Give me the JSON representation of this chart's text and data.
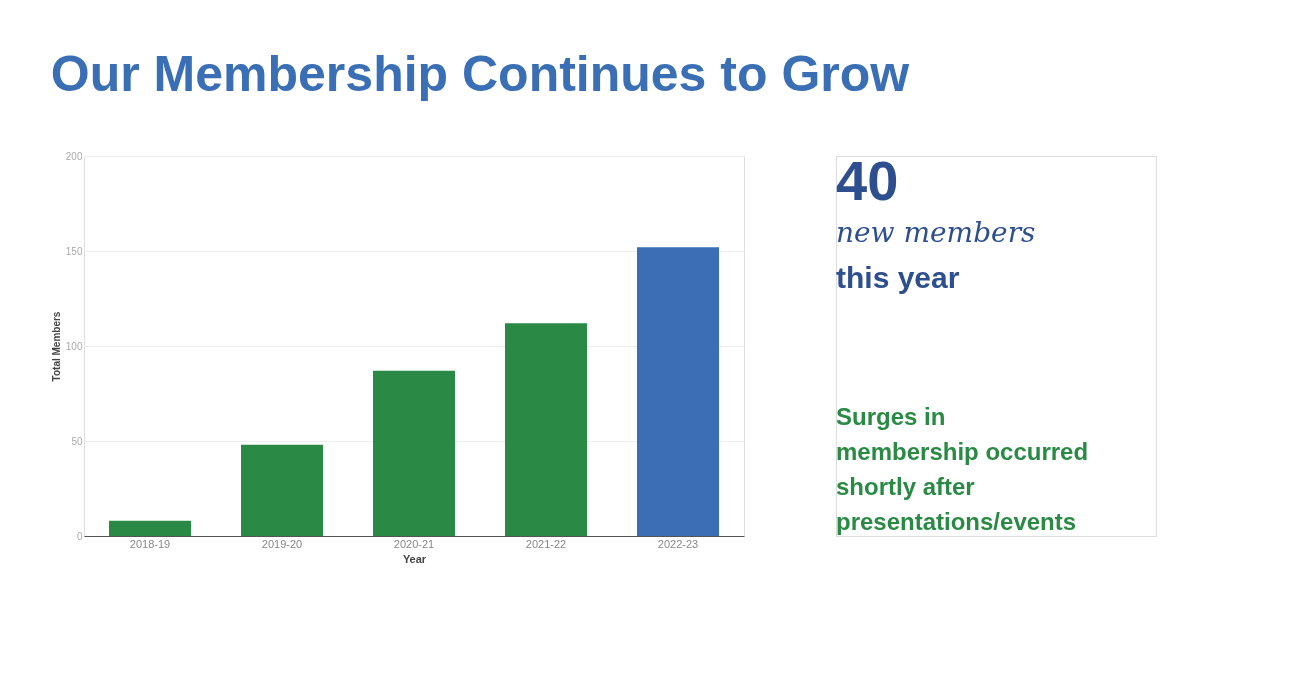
{
  "chart_data": {
    "type": "bar",
    "title": "Our Membership Continues to Grow",
    "xlabel": "Year",
    "ylabel": "Total Members",
    "categories": [
      "2018-19",
      "2019-20",
      "2020-21",
      "2021-22",
      "2022-23"
    ],
    "values": [
      8,
      48,
      87,
      112,
      152
    ],
    "colors": [
      "#2a8a45",
      "#2a8a45",
      "#2a8a45",
      "#2a8a45",
      "#3a6fb5"
    ],
    "ylim": [
      0,
      200
    ],
    "yticks": [
      0,
      50,
      100,
      150,
      200
    ],
    "grid": "y",
    "annotations": [
      "40",
      "new members",
      "this year",
      "Surges in membership occurred shortly after presentations/events"
    ]
  }
}
